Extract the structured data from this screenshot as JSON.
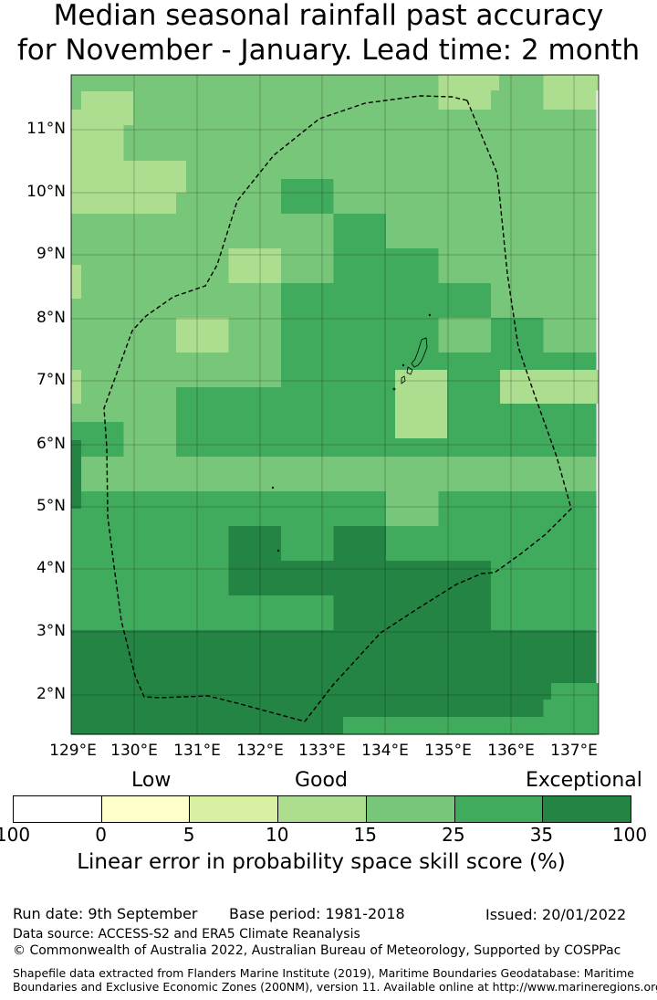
{
  "title": {
    "line1": "Median seasonal rainfall past accuracy",
    "line2": "for November - January. Lead time: 2 month"
  },
  "map": {
    "lon_labels": [
      "129°E",
      "130°E",
      "131°E",
      "132°E",
      "133°E",
      "134°E",
      "135°E",
      "136°E",
      "137°E"
    ],
    "lat_labels": [
      "11°N",
      "10°N",
      "9°N",
      "8°N",
      "7°N",
      "6°N",
      "5°N",
      "4°N",
      "3°N",
      "2°N"
    ],
    "boundary_style": "dashed",
    "grid": true
  },
  "legend": {
    "categories": [
      "Low",
      "Good",
      "Exceptional"
    ],
    "ticks": [
      "100",
      "0",
      "5",
      "10",
      "15",
      "25",
      "35",
      "100"
    ],
    "colors": [
      "#ffffff",
      "#ffffcc",
      "#d9f0a3",
      "#addd8e",
      "#78c679",
      "#41ab5d",
      "#238443"
    ],
    "label": "Linear error in probability space skill score (%)"
  },
  "footer": {
    "run_date": "Run date: 9th September",
    "base_period": "Base period: 1981-2018",
    "issued": "Issued: 20/01/2022",
    "data_source": "Data source: ACCESS-S2 and ERA5 Climate Reanalysis",
    "copyright": "© Commonwealth of Australia 2022, Australian Bureau of Meteorology, Supported by COSPPac",
    "shapefile_line1": "Shapefile data extracted from Flanders Marine Institute (2019), Maritime Boundaries Geodatabase: Maritime",
    "shapefile_line2": "Boundaries and Exclusive Economic Zones (200NM), version 11. Available online at http://www.marineregions.org/."
  }
}
